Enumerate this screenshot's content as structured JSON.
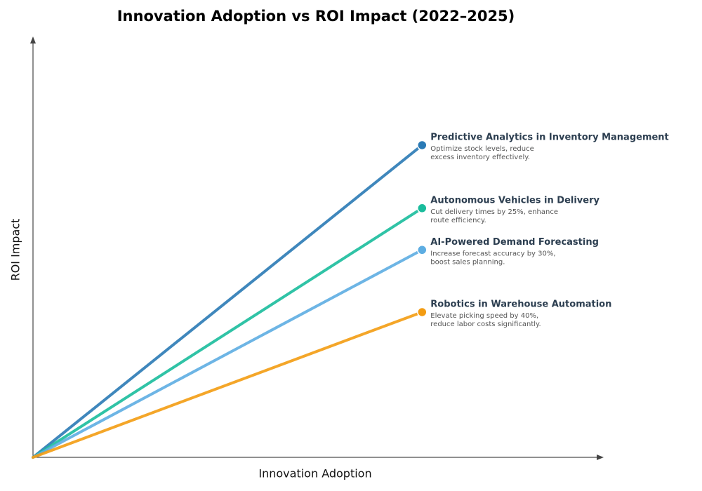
{
  "chart_data": {
    "type": "line",
    "title": "Innovation Adoption vs ROI Impact (2022–2025)",
    "x_label": "Innovation Adoption",
    "y_label": "ROI Impact",
    "xlim": [
      0,
      1
    ],
    "ylim": [
      0,
      1
    ],
    "series": [
      {
        "name": "Predictive Analytics in Inventory Management",
        "description": [
          "Optimize stock levels, reduce",
          "excess inventory effectively."
        ],
        "color": "#2a7ab5",
        "x": [
          0,
          0.686
        ],
        "values": [
          0,
          0.748
        ]
      },
      {
        "name": "Autonomous Vehicles in Delivery",
        "description": [
          "Cut delivery times by 25%, enhance",
          "route efficiency."
        ],
        "color": "#1abc9c",
        "x": [
          0,
          0.686
        ],
        "values": [
          0,
          0.597
        ]
      },
      {
        "name": "AI-Powered Demand Forecasting",
        "description": [
          "Increase forecast accuracy by 30%,",
          "boost sales planning."
        ],
        "color": "#5dade2",
        "x": [
          0,
          0.686
        ],
        "values": [
          0,
          0.497
        ]
      },
      {
        "name": "Robotics in Warehouse Automation",
        "description": [
          "Elevate picking speed by 40%,",
          "reduce labor costs significantly."
        ],
        "color": "#f39c12",
        "x": [
          0,
          0.686
        ],
        "values": [
          0,
          0.348
        ]
      }
    ]
  }
}
